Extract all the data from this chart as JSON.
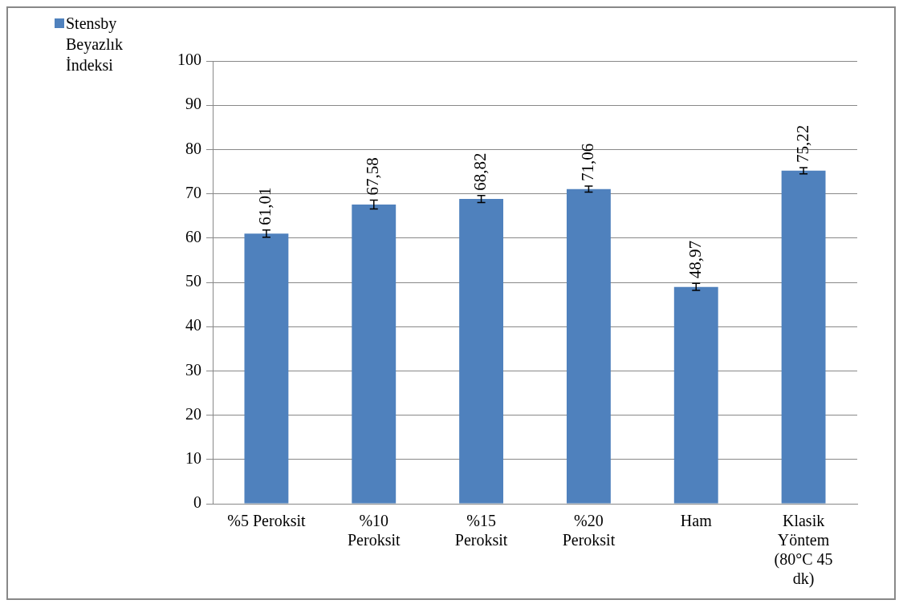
{
  "chart_data": {
    "type": "bar",
    "categories": [
      "%5 Peroksit",
      "%10 Peroksit",
      "%15 Peroksit",
      "%20 Peroksit",
      "Ham",
      "Klasik Yöntem (80°C 45 dk)"
    ],
    "series": [
      {
        "name": "Stensby Beyazlık İndeksi",
        "color": "#4f81bd",
        "values": [
          61.01,
          67.58,
          68.82,
          71.06,
          48.97,
          75.22
        ],
        "errors": [
          0.8,
          1.0,
          0.8,
          0.7,
          0.8,
          0.7
        ],
        "value_labels": [
          "61,01",
          "67,58",
          "68,82",
          "71,06",
          "48,97",
          "75,22"
        ]
      }
    ],
    "ylim": [
      0,
      100
    ],
    "yticks": [
      0,
      10,
      20,
      30,
      40,
      50,
      60,
      70,
      80,
      90,
      100
    ],
    "grid": "y",
    "legend": "top left"
  }
}
